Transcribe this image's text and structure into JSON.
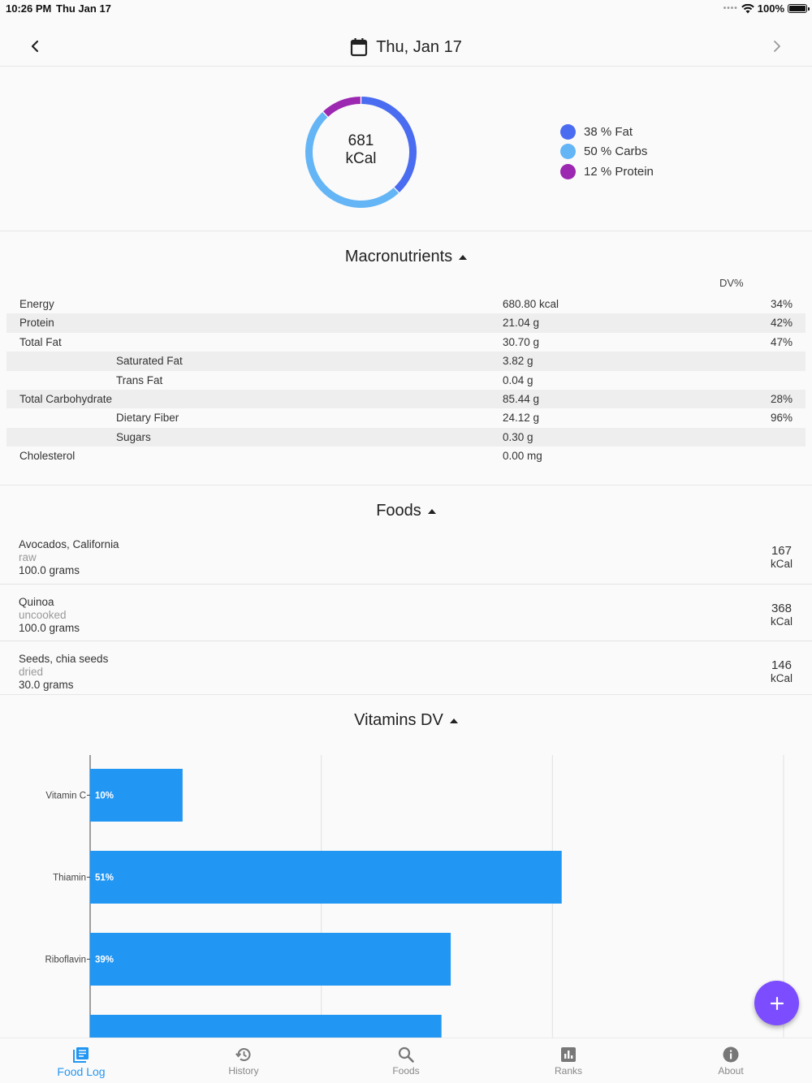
{
  "status": {
    "time": "10:26 PM",
    "date": "Thu Jan 17",
    "battery": "100%"
  },
  "header": {
    "title": "Thu, Jan 17"
  },
  "summary": {
    "kcal_value": "681",
    "kcal_unit": "kCal",
    "legend": [
      {
        "label": "38 % Fat",
        "color": "#4a6cf0",
        "pct": 38
      },
      {
        "label": "50 % Carbs",
        "color": "#64b5f6",
        "pct": 50
      },
      {
        "label": "12 % Protein",
        "color": "#9c27b0",
        "pct": 12
      }
    ]
  },
  "macros": {
    "title": "Macronutrients",
    "dv_header": "DV%",
    "rows": [
      {
        "name": "Energy",
        "amount": "680.80 kcal",
        "pct": "34%"
      },
      {
        "name": "Protein",
        "amount": "21.04 g",
        "pct": "42%"
      },
      {
        "name": "Total Fat",
        "amount": "30.70 g",
        "pct": "47%"
      },
      {
        "name": "Saturated Fat",
        "amount": "3.82 g",
        "pct": ""
      },
      {
        "name": "Trans Fat",
        "amount": "0.04 g",
        "pct": ""
      },
      {
        "name": "Total Carbohydrate",
        "amount": "85.44 g",
        "pct": "28%"
      },
      {
        "name": "Dietary Fiber",
        "amount": "24.12 g",
        "pct": "96%"
      },
      {
        "name": "Sugars",
        "amount": "0.30 g",
        "pct": ""
      },
      {
        "name": "Cholesterol",
        "amount": "0.00 mg",
        "pct": ""
      }
    ]
  },
  "foods": {
    "title": "Foods",
    "items": [
      {
        "name": "Avocados, California",
        "desc": "raw",
        "amount": "100.0 grams",
        "kcal": "167",
        "unit": "kCal"
      },
      {
        "name": "Quinoa",
        "desc": "uncooked",
        "amount": "100.0 grams",
        "kcal": "368",
        "unit": "kCal"
      },
      {
        "name": "Seeds, chia seeds",
        "desc": "dried",
        "amount": "30.0 grams",
        "kcal": "146",
        "unit": "kCal"
      }
    ]
  },
  "vitamins": {
    "title": "Vitamins DV",
    "chart_data": {
      "type": "bar",
      "orientation": "horizontal",
      "categories": [
        "Vitamin C",
        "Thiamin",
        "Riboflavin",
        ""
      ],
      "values": [
        10,
        51,
        39,
        38
      ],
      "value_labels": [
        "10%",
        "51%",
        "39%",
        ""
      ],
      "xlim": [
        0,
        75
      ],
      "grid": true,
      "bar_color": "#2196f3"
    }
  },
  "tabs": [
    {
      "label": "Food Log",
      "icon": "food-log-icon",
      "active": true
    },
    {
      "label": "History",
      "icon": "history-icon",
      "active": false
    },
    {
      "label": "Foods",
      "icon": "search-icon",
      "active": false
    },
    {
      "label": "Ranks",
      "icon": "ranks-icon",
      "active": false
    },
    {
      "label": "About",
      "icon": "info-icon",
      "active": false
    }
  ]
}
